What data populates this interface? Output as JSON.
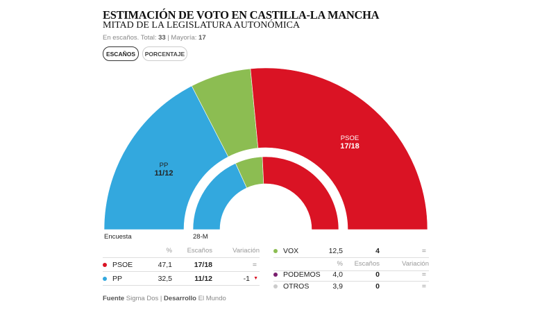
{
  "header": {
    "title": "ESTIMACIÓN DE VOTO EN CASTILLA-LA MANCHA",
    "subtitle": "MITAD DE LA LEGISLATURA AUTONÓMICA",
    "meta_prefix": "En escaños. Total: ",
    "total": "33",
    "meta_sep": " | Mayoría: ",
    "majority": "17"
  },
  "toggle": {
    "seats": "ESCAÑOS",
    "percent": "PORCENTAJE",
    "selected": "ESCAÑOS"
  },
  "chart_data": {
    "type": "pie",
    "total_seats": 33,
    "rings": [
      {
        "name": "Encuesta",
        "series": [
          {
            "party": "PP",
            "seats_low": 11,
            "seats_high": 12,
            "label": "11/12",
            "color": "#33a8de"
          },
          {
            "party": "VOX",
            "seats_low": 4,
            "seats_high": 4,
            "color": "#8cbd52"
          },
          {
            "party": "PSOE",
            "seats_low": 17,
            "seats_high": 18,
            "label": "17/18",
            "color": "#da1324"
          }
        ]
      },
      {
        "name": "28-M",
        "series": [
          {
            "party": "PP",
            "seats_low": 12,
            "seats_high": 12,
            "color": "#33a8de"
          },
          {
            "party": "VOX",
            "seats_low": 4,
            "seats_high": 4,
            "color": "#8cbd52"
          },
          {
            "party": "PSOE",
            "seats_low": 17,
            "seats_high": 17,
            "color": "#da1324"
          }
        ]
      }
    ]
  },
  "table": {
    "headers": {
      "pct": "%",
      "seats": "Escaños",
      "var": "Variación"
    },
    "left": [
      {
        "party": "PSOE",
        "pct": "47,1",
        "seats": "17/18",
        "var": "=",
        "color": "#da1324"
      },
      {
        "party": "PP",
        "pct": "32,5",
        "seats": "11/12",
        "var": "-1",
        "trend": "down",
        "color": "#33a8de"
      }
    ],
    "right": [
      {
        "party": "VOX",
        "pct": "12,5",
        "seats": "4",
        "var": "=",
        "color": "#8cbd52"
      },
      {
        "party": "PODEMOS",
        "pct": "4,0",
        "seats": "0",
        "var": "=",
        "color": "#7a1f6e"
      },
      {
        "party": "OTROS",
        "pct": "3,9",
        "seats": "0",
        "var": "=",
        "color": "#cccccc"
      }
    ]
  },
  "footer": {
    "source_label": "Fuente",
    "source": " Sigma Dos | ",
    "dev_label": "Desarrollo",
    "dev": " El Mundo"
  }
}
